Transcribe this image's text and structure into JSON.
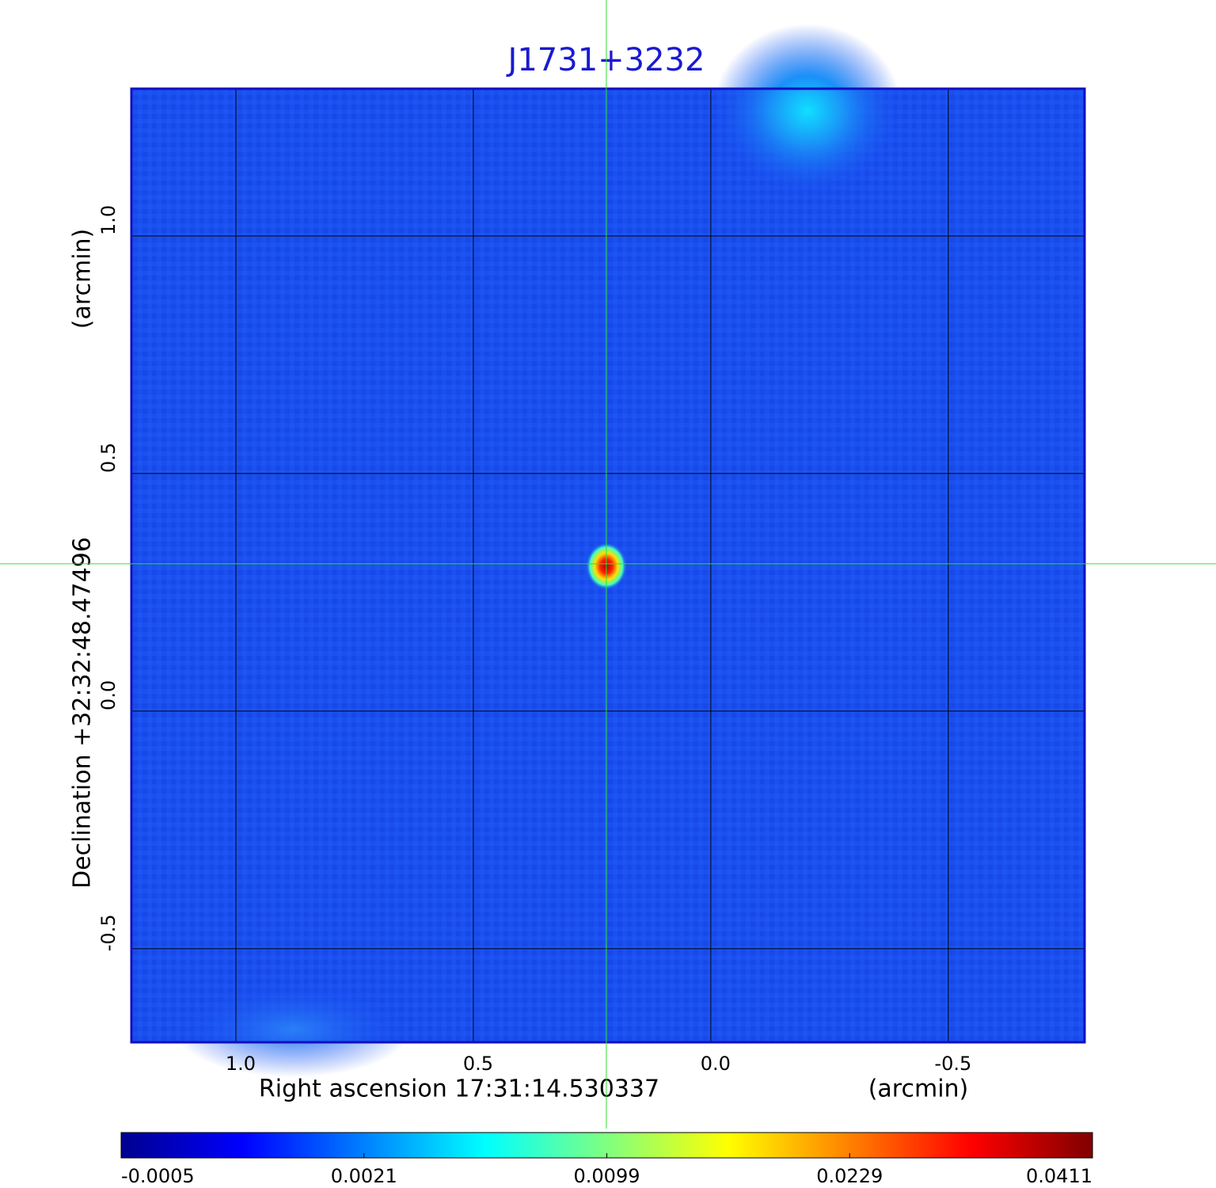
{
  "chart_data": {
    "type": "image",
    "title": "J1731+3232",
    "x_label": "Right ascension  17:31:14.530337",
    "x_unit": "(arcmin)",
    "y_label": "Declination  +32:32:48.47496",
    "y_unit": "(arcmin)",
    "xlim": [
      1.22,
      -0.787
    ],
    "ylim": [
      -0.697,
      1.31
    ],
    "xticks": [
      {
        "value": 1,
        "label": "1.0"
      },
      0.5,
      {
        "value": 0,
        "label": "0.0"
      },
      -0.5
    ],
    "yticks": [
      -0.5,
      {
        "value": 0,
        "label": "0.0"
      },
      0.5,
      {
        "value": 1,
        "label": "1.0"
      }
    ],
    "grid": true,
    "crosshair": {
      "x": 0.22,
      "y": 0.31
    },
    "cmap": "jet",
    "clim": [
      -0.0005,
      0.0411
    ],
    "cscale": "sqrt",
    "cticks": [
      -0.0005,
      0.0021,
      0.0099,
      0.0229,
      0.0411
    ]
  }
}
